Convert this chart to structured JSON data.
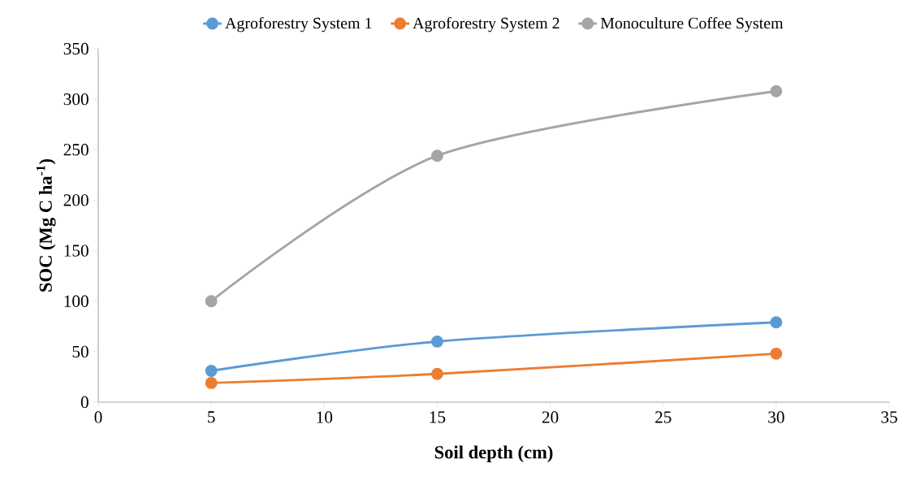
{
  "chart_data": {
    "type": "line",
    "xlabel": "Soil depth (cm)",
    "ylabel": "SOC (Mg C ha$^{-1}$)",
    "x": [
      5,
      15,
      30
    ],
    "series": [
      {
        "name": "Agroforestry System 1",
        "color": "#5b9bd5",
        "values": [
          31,
          60,
          79
        ]
      },
      {
        "name": "Agroforestry System 2",
        "color": "#ed7d31",
        "values": [
          19,
          28,
          48
        ]
      },
      {
        "name": "Monoculture Coffee System",
        "color": "#a5a5a5",
        "values": [
          100,
          244,
          308
        ]
      }
    ],
    "xlim": [
      0,
      35
    ],
    "xticks": [
      0,
      5,
      10,
      15,
      20,
      25,
      30,
      35
    ],
    "ylim": [
      0,
      350
    ],
    "yticks": [
      0,
      50,
      100,
      150,
      200,
      250,
      300,
      350
    ],
    "grid": false,
    "legend": "top",
    "marker": "circle",
    "line_style": "solid"
  }
}
